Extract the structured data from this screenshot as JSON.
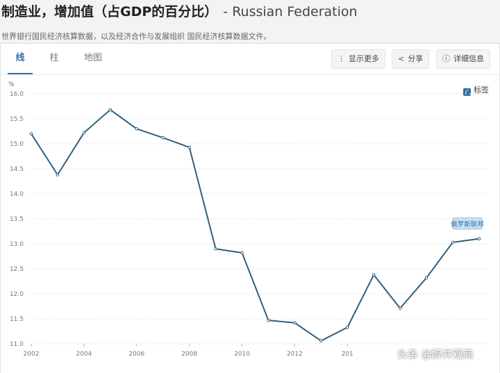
{
  "header": {
    "title": "制造业，增加值（占GDP的百分比）",
    "country": "- Russian Federation",
    "source": "世界银行国民经济核算数据，以及经济合作与发展组织 国民经济核算数据文件。"
  },
  "tabs": [
    {
      "label": "线",
      "active": true
    },
    {
      "label": "柱",
      "active": false
    },
    {
      "label": "地图",
      "active": false
    }
  ],
  "toolbar": {
    "more_label": "显示更多",
    "more_icon": "vertical-dots-icon",
    "share_label": "分享",
    "share_icon": "share-icon",
    "details_label": "详细信息",
    "details_icon": "info-icon"
  },
  "labels_toggle": {
    "label": "标签",
    "checked": true
  },
  "chart_data": {
    "type": "line",
    "ylabel": "%",
    "ylim": [
      11.0,
      16.0
    ],
    "yticks": [
      "16.0",
      "15.5",
      "15.0",
      "14.5",
      "14.0",
      "13.5",
      "13.0",
      "12.5",
      "12.0",
      "11.5",
      "11.0"
    ],
    "xlim": [
      2002,
      2019
    ],
    "xticks": [
      "2002",
      "2004",
      "2006",
      "2008",
      "2010",
      "2012",
      "201"
    ],
    "grid": true,
    "series": [
      {
        "name": "俄罗斯联邦",
        "color": "#2e5f7f",
        "x": [
          2002,
          2003,
          2004,
          2005,
          2006,
          2007,
          2008,
          2009,
          2010,
          2011,
          2012,
          2013,
          2014,
          2015,
          2016,
          2017,
          2018,
          2019
        ],
        "y": [
          15.2,
          14.38,
          15.22,
          15.68,
          15.3,
          15.12,
          14.93,
          12.9,
          12.82,
          11.47,
          11.42,
          11.06,
          11.33,
          12.38,
          11.71,
          12.32,
          13.03,
          13.1
        ]
      }
    ]
  },
  "watermark": "头条 @醉井观商",
  "colors": {
    "accent": "#2f6fa8",
    "line": "#2e5f7f",
    "grid": "#e3e5e8"
  }
}
